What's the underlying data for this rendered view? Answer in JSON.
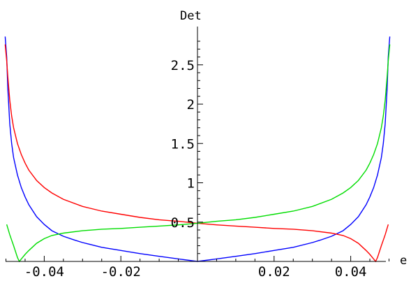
{
  "chart_data": {
    "type": "line",
    "title": "",
    "xlabel": "e",
    "ylabel": "Det",
    "xlim": [
      -0.05,
      0.05
    ],
    "ylim": [
      0,
      2.9
    ],
    "grid": false,
    "legend": "none",
    "x_ticks": [
      {
        "value": -0.04,
        "label": "-0.04"
      },
      {
        "value": -0.02,
        "label": "-0.02"
      },
      {
        "value": 0.02,
        "label": "0.02"
      },
      {
        "value": 0.04,
        "label": "0.04"
      }
    ],
    "y_ticks": [
      {
        "value": 0.5,
        "label": "0.5"
      },
      {
        "value": 1,
        "label": "1"
      },
      {
        "value": 1.5,
        "label": "1.5"
      },
      {
        "value": 2,
        "label": "2"
      },
      {
        "value": 2.5,
        "label": "2.5"
      }
    ],
    "series": [
      {
        "color": "#0000ff",
        "points": [
          [
            -0.0502,
            2.86
          ],
          [
            -0.0498,
            2.6
          ],
          [
            -0.0495,
            2.2
          ],
          [
            -0.049,
            1.75
          ],
          [
            -0.0485,
            1.5
          ],
          [
            -0.048,
            1.32
          ],
          [
            -0.047,
            1.1
          ],
          [
            -0.046,
            0.94
          ],
          [
            -0.045,
            0.82
          ],
          [
            -0.044,
            0.72
          ],
          [
            -0.042,
            0.57
          ],
          [
            -0.04,
            0.47
          ],
          [
            -0.038,
            0.39
          ],
          [
            -0.035,
            0.32
          ],
          [
            -0.032,
            0.27
          ],
          [
            -0.03,
            0.24
          ],
          [
            -0.025,
            0.18
          ],
          [
            -0.02,
            0.14
          ],
          [
            -0.015,
            0.1
          ],
          [
            -0.01,
            0.065
          ],
          [
            -0.005,
            0.032
          ],
          [
            0,
            0.0
          ],
          [
            0.005,
            0.032
          ],
          [
            0.01,
            0.065
          ],
          [
            0.015,
            0.1
          ],
          [
            0.02,
            0.14
          ],
          [
            0.025,
            0.18
          ],
          [
            0.03,
            0.24
          ],
          [
            0.032,
            0.27
          ],
          [
            0.035,
            0.32
          ],
          [
            0.038,
            0.39
          ],
          [
            0.04,
            0.47
          ],
          [
            0.042,
            0.57
          ],
          [
            0.044,
            0.72
          ],
          [
            0.045,
            0.82
          ],
          [
            0.046,
            0.94
          ],
          [
            0.047,
            1.1
          ],
          [
            0.048,
            1.32
          ],
          [
            0.0485,
            1.5
          ],
          [
            0.049,
            1.75
          ],
          [
            0.0495,
            2.2
          ],
          [
            0.0498,
            2.6
          ],
          [
            0.0502,
            2.86
          ]
        ]
      },
      {
        "color": "#ff0000",
        "points": [
          [
            -0.0502,
            2.76
          ],
          [
            -0.0498,
            2.55
          ],
          [
            -0.0495,
            2.35
          ],
          [
            -0.049,
            2.05
          ],
          [
            -0.0485,
            1.85
          ],
          [
            -0.048,
            1.7
          ],
          [
            -0.047,
            1.5
          ],
          [
            -0.046,
            1.36
          ],
          [
            -0.045,
            1.25
          ],
          [
            -0.044,
            1.16
          ],
          [
            -0.042,
            1.03
          ],
          [
            -0.04,
            0.94
          ],
          [
            -0.038,
            0.87
          ],
          [
            -0.035,
            0.79
          ],
          [
            -0.03,
            0.7
          ],
          [
            -0.025,
            0.64
          ],
          [
            -0.02,
            0.6
          ],
          [
            -0.015,
            0.56
          ],
          [
            -0.01,
            0.53
          ],
          [
            -0.005,
            0.51
          ],
          [
            0,
            0.485
          ],
          [
            0.005,
            0.465
          ],
          [
            0.01,
            0.45
          ],
          [
            0.015,
            0.435
          ],
          [
            0.02,
            0.42
          ],
          [
            0.025,
            0.41
          ],
          [
            0.03,
            0.39
          ],
          [
            0.035,
            0.36
          ],
          [
            0.038,
            0.33
          ],
          [
            0.04,
            0.29
          ],
          [
            0.042,
            0.23
          ],
          [
            0.044,
            0.14
          ],
          [
            0.045,
            0.09
          ],
          [
            0.046,
            0.03
          ],
          [
            0.0465,
            0.0
          ],
          [
            0.047,
            0.05
          ],
          [
            0.048,
            0.2
          ],
          [
            0.049,
            0.34
          ],
          [
            0.0498,
            0.47
          ]
        ]
      },
      {
        "color": "#00dd00",
        "points": [
          [
            -0.0498,
            0.47
          ],
          [
            -0.049,
            0.34
          ],
          [
            -0.048,
            0.2
          ],
          [
            -0.047,
            0.05
          ],
          [
            -0.0465,
            0.0
          ],
          [
            -0.046,
            0.03
          ],
          [
            -0.045,
            0.09
          ],
          [
            -0.044,
            0.14
          ],
          [
            -0.042,
            0.23
          ],
          [
            -0.04,
            0.29
          ],
          [
            -0.038,
            0.33
          ],
          [
            -0.035,
            0.36
          ],
          [
            -0.03,
            0.39
          ],
          [
            -0.025,
            0.41
          ],
          [
            -0.02,
            0.42
          ],
          [
            -0.015,
            0.435
          ],
          [
            -0.01,
            0.45
          ],
          [
            -0.005,
            0.465
          ],
          [
            0,
            0.485
          ],
          [
            0.005,
            0.51
          ],
          [
            0.01,
            0.53
          ],
          [
            0.015,
            0.56
          ],
          [
            0.02,
            0.6
          ],
          [
            0.025,
            0.64
          ],
          [
            0.03,
            0.7
          ],
          [
            0.035,
            0.79
          ],
          [
            0.038,
            0.87
          ],
          [
            0.04,
            0.94
          ],
          [
            0.042,
            1.03
          ],
          [
            0.044,
            1.16
          ],
          [
            0.045,
            1.25
          ],
          [
            0.046,
            1.36
          ],
          [
            0.047,
            1.5
          ],
          [
            0.048,
            1.7
          ],
          [
            0.0485,
            1.85
          ],
          [
            0.049,
            2.05
          ],
          [
            0.0495,
            2.35
          ],
          [
            0.0498,
            2.55
          ],
          [
            0.0502,
            2.76
          ]
        ]
      }
    ]
  }
}
